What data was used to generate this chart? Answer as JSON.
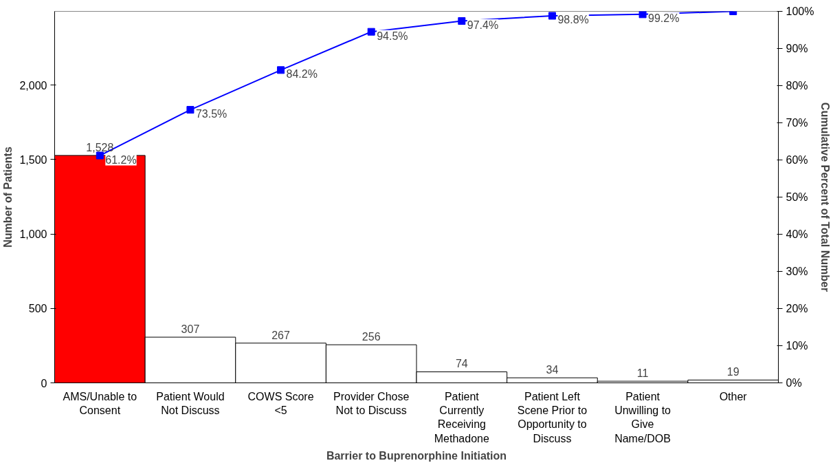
{
  "chart_data": {
    "type": "bar",
    "xlabel": "Barrier to Buprenorphine Initiation",
    "ylabel": "Number of Patients",
    "y2label": "Cumulative Percent of Total Number",
    "categories": [
      "AMS/Unable to\nConsent",
      "Patient Would\nNot Discuss",
      "COWS Score\n<5",
      "Provider Chose\nNot to Discuss",
      "Patient\nCurrently\nReceiving\nMethadone",
      "Patient Left\nScene Prior to\nOpportunity to\nDiscuss",
      "Patient\nUnwilling to\nGive\nName/DOB",
      "Other"
    ],
    "series": [
      {
        "values": [
          1528,
          307,
          267,
          256,
          74,
          34,
          11,
          19
        ],
        "colors": [
          "#ff0000",
          "#ffffff",
          "#ffffff",
          "#ffffff",
          "#ffffff",
          "#ffffff",
          "#ffffff",
          "#ffffff"
        ],
        "value_labels": [
          "1,528",
          "307",
          "267",
          "256",
          "74",
          "34",
          "11",
          "19"
        ]
      },
      {
        "type": "line",
        "axis": "y2",
        "color": "#0000ff",
        "marker": "square",
        "values": [
          61.2,
          73.5,
          84.2,
          94.5,
          97.4,
          98.8,
          99.2,
          100
        ],
        "value_labels": [
          "61.2%",
          "73.5%",
          "84.2%",
          "94.5%",
          "97.4%",
          "98.8%",
          "99.2%",
          null
        ]
      }
    ],
    "ylim": [
      0,
      2496
    ],
    "yticks": [
      0,
      500,
      {
        "value": 1000,
        "label": "1,000"
      },
      {
        "value": 1500,
        "label": "1,500"
      },
      {
        "value": 2000,
        "label": "2,000"
      }
    ],
    "y2lim": [
      0,
      100
    ],
    "y2ticks": [
      {
        "value": 0,
        "label": "0%"
      },
      {
        "value": 10,
        "label": "10%"
      },
      {
        "value": 20,
        "label": "20%"
      },
      {
        "value": 30,
        "label": "30%"
      },
      {
        "value": 40,
        "label": "40%"
      },
      {
        "value": 50,
        "label": "50%"
      },
      {
        "value": 60,
        "label": "60%"
      },
      {
        "value": 70,
        "label": "70%"
      },
      {
        "value": 80,
        "label": "80%"
      },
      {
        "value": 90,
        "label": "90%"
      },
      {
        "value": 100,
        "label": "100%"
      }
    ]
  }
}
